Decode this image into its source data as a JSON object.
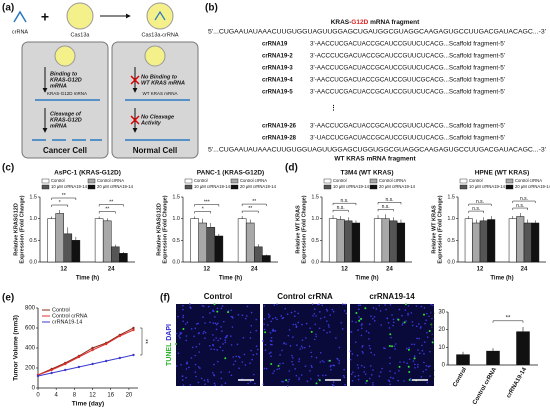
{
  "panel_labels": [
    "(a)",
    "(b)",
    "(c)",
    "(d)",
    "(e)",
    "(f)"
  ],
  "diagram_a": {
    "crrna": "crRNA",
    "cas13a": "Cas13a",
    "complex": "Cas13a-crRNA",
    "cancer": {
      "step1": [
        "Binding to",
        "KRAS-G12D",
        "mRNA"
      ],
      "target": "KRAS-G12D mRNA",
      "step2": [
        "Cleavage of",
        "KRAS-G12D",
        "mRNA"
      ],
      "label": "Cancer Cell"
    },
    "normal": {
      "step1": [
        "No Binding to",
        "WT KRAS mRNA"
      ],
      "target": "WT KRAS mRNA",
      "step2": [
        "No Cleavage",
        "Activity"
      ],
      "label": "Normal Cell"
    }
  },
  "sequences_b": {
    "title": [
      "KRAS-",
      "G12D",
      " mRNA fragment"
    ],
    "top": "5'...CUGAAUAUAAACUUGUGGUAGUUGGAGCUGAUGGCGUAGGCAAGAGUGCCUUGACGAUACAGC...-3'",
    "rows": [
      [
        "crRNA19",
        "3'-AACCUCGACUACCGCAUCCGUUCUCACG...Scaffold fragment-5'"
      ],
      [
        "crRNA19-2",
        "3'-ACCCUCGACUACCGCAUCCGUUCUCACG...Scaffold fragment-5'"
      ],
      [
        "crRNA19-3",
        "3'-AACCUCGACUACCGCAUCCGUUCUCACG...Scaffold fragment-5'"
      ],
      [
        "crRNA19-4",
        "3'-AACCUCGACUACCGCAUCCGUUCGCACG...Scaffold fragment-5'"
      ],
      [
        "crRNA19-5",
        "3'-AACCUCGACUACCGCAUCCGUUCUCACG...Scaffold fragment-5'"
      ],
      [
        "crRNA19-26",
        "3'-AACCUCGACUACCGCAUCCGUUCUCACG...Scaffold fragment-5'"
      ],
      [
        "crRNA19-28",
        "3'-UACCUCGACUACCGCAUCCGUUCUCACG...Scaffold fragment-5'"
      ]
    ],
    "bottom": "5'...CUGAAUAUAAACUUGUGGUAGUUGGAGCUGGUGGCGUAGGCAAGAGUGCCUUGACGAUACAGC...-3'",
    "bottom_label": "WT KRAS mRNA fragment"
  },
  "images_f": {
    "labels": [
      "Control",
      "Control crRNA",
      "crRNA19-14"
    ],
    "stain": [
      "TUNEL",
      "DAPI"
    ]
  },
  "chart_data": [
    {
      "type": "bar",
      "title": "AsPC-1 (KRAS-G12D)",
      "y_label": [
        "Relative KRASG12D",
        "Expression (Fold Change)"
      ],
      "x_label": "Time (h)",
      "categories": [
        "12",
        "24"
      ],
      "ylim": [
        0,
        1.5
      ],
      "yticks": [
        {
          "value": 0,
          "label": "0.0"
        },
        {
          "value": 0.5,
          "label": "0.5"
        },
        {
          "value": 1,
          "label": "1.0"
        },
        {
          "value": 1.5,
          "label": "1.5"
        }
      ],
      "series": [
        {
          "name": "Control",
          "color": "#ffffff",
          "values": [
            1.0,
            1.0
          ],
          "errors": [
            0.05,
            0.05
          ]
        },
        {
          "name": "Control crRNA",
          "color": "#a8a8a8",
          "values": [
            1.12,
            0.95
          ],
          "errors": [
            0.08,
            0.06
          ]
        },
        {
          "name": "10 μM crRNA19-14",
          "color": "#555555",
          "values": [
            0.65,
            0.35
          ],
          "errors": [
            0.15,
            0.05
          ]
        },
        {
          "name": "20 μM crRNA19-14",
          "color": "#111111",
          "values": [
            0.5,
            0.2
          ],
          "errors": [
            0.08,
            0.03
          ]
        }
      ],
      "significance": [
        "*",
        "**",
        "**",
        "**"
      ]
    },
    {
      "type": "bar",
      "title": "PANC-1 (KRAS-G12D)",
      "y_label": [
        "Relative KRASG12D",
        "Expression (Fold Change)"
      ],
      "x_label": "Time (h)",
      "categories": [
        "12",
        "24"
      ],
      "ylim": [
        0,
        1.5
      ],
      "yticks": [
        {
          "value": 0,
          "label": "0.0"
        },
        {
          "value": 0.5,
          "label": "0.5"
        },
        {
          "value": 1,
          "label": "1.0"
        },
        {
          "value": 1.5,
          "label": "1.5"
        }
      ],
      "series": [
        {
          "name": "Control",
          "color": "#ffffff",
          "values": [
            1.0,
            1.0
          ],
          "errors": [
            0.05,
            0.06
          ]
        },
        {
          "name": "Control crRNA",
          "color": "#a8a8a8",
          "values": [
            0.9,
            0.9
          ],
          "errors": [
            0.1,
            0.08
          ]
        },
        {
          "name": "10 μM crRNA19-14",
          "color": "#555555",
          "values": [
            0.8,
            0.35
          ],
          "errors": [
            0.1,
            0.06
          ]
        },
        {
          "name": "20 μM crRNA19-14",
          "color": "#111111",
          "values": [
            0.6,
            0.15
          ],
          "errors": [
            0.05,
            0.02
          ]
        }
      ],
      "significance": [
        "*",
        "***",
        "**",
        "**"
      ]
    },
    {
      "type": "bar",
      "title": "T3M4 (WT KRAS)",
      "y_label": [
        "Relative WT KRAS",
        "Expression (Fold Change)"
      ],
      "x_label": "Time (h)",
      "categories": [
        "12",
        "24"
      ],
      "ylim": [
        0,
        1.5
      ],
      "yticks": [
        {
          "value": 0,
          "label": "0.0"
        },
        {
          "value": 0.5,
          "label": "0.5"
        },
        {
          "value": 1,
          "label": "1.0"
        },
        {
          "value": 1.5,
          "label": "1.5"
        }
      ],
      "series": [
        {
          "name": "Control",
          "color": "#ffffff",
          "values": [
            1.0,
            1.0
          ],
          "errors": [
            0.08,
            0.08
          ]
        },
        {
          "name": "Control crRNA",
          "color": "#a8a8a8",
          "values": [
            0.98,
            1.0
          ],
          "errors": [
            0.08,
            0.1
          ]
        },
        {
          "name": "10 μM crRNA19-14",
          "color": "#555555",
          "values": [
            0.95,
            0.95
          ],
          "errors": [
            0.08,
            0.08
          ]
        },
        {
          "name": "20 μM crRNA19-14",
          "color": "#111111",
          "values": [
            0.9,
            0.9
          ],
          "errors": [
            0.06,
            0.08
          ]
        }
      ],
      "significance": [
        "n.s.",
        "n.s.",
        "n.s.",
        "n.s."
      ]
    },
    {
      "type": "bar",
      "title": "HPNE (WT KRAS)",
      "y_label": [
        "Relative WT KRAS",
        "Expression (Fold Change)"
      ],
      "x_label": "Time (h)",
      "categories": [
        "12",
        "24"
      ],
      "ylim": [
        0,
        1.5
      ],
      "yticks": [
        {
          "value": 0,
          "label": "0.0"
        },
        {
          "value": 0.5,
          "label": "0.5"
        },
        {
          "value": 1,
          "label": "1.0"
        },
        {
          "value": 1.5,
          "label": "1.5"
        }
      ],
      "series": [
        {
          "name": "Control",
          "color": "#ffffff",
          "values": [
            1.0,
            1.0
          ],
          "errors": [
            0.06,
            0.06
          ]
        },
        {
          "name": "Control crRNA",
          "color": "#a8a8a8",
          "values": [
            0.9,
            1.05
          ],
          "errors": [
            0.08,
            0.08
          ]
        },
        {
          "name": "10 μM crRNA19-14",
          "color": "#555555",
          "values": [
            0.95,
            0.9
          ],
          "errors": [
            0.08,
            0.08
          ]
        },
        {
          "name": "20 μM crRNA19-14",
          "color": "#111111",
          "values": [
            0.98,
            0.9
          ],
          "errors": [
            0.08,
            0.06
          ]
        }
      ],
      "significance": [
        "n.s.",
        "n.s.",
        "n.s.",
        "n.s."
      ]
    },
    {
      "type": "line",
      "y_label": "Tumor Volume (mm3)",
      "x_label": "Time (day)",
      "x": [
        0,
        3,
        6,
        9,
        12,
        15,
        18,
        21
      ],
      "xlim": [
        0,
        22
      ],
      "xticks": [
        0,
        4,
        8,
        12,
        16,
        20
      ],
      "ylim": [
        0,
        800
      ],
      "yticks": [
        0,
        200,
        400,
        600,
        800
      ],
      "series": [
        {
          "name": "Control",
          "color": "#8b2a1a",
          "values": [
            130,
            190,
            250,
            320,
            400,
            450,
            530,
            600
          ]
        },
        {
          "name": "Control crRNA",
          "color": "#e03030",
          "values": [
            130,
            180,
            240,
            310,
            380,
            440,
            520,
            580
          ]
        },
        {
          "name": "crRNA19-14",
          "color": "#3a3ad0",
          "values": [
            120,
            150,
            180,
            210,
            240,
            270,
            300,
            330
          ]
        }
      ],
      "significance": "**"
    },
    {
      "type": "bar",
      "y_label": "Apoptotic tumor cell rate (%)",
      "categories": [
        "Control",
        "Control crRNA",
        "crRNA19-14"
      ],
      "ylim": [
        0,
        30
      ],
      "yticks": [
        0,
        10,
        20,
        30
      ],
      "color": "#111111",
      "values": [
        6,
        8,
        19
      ],
      "errors": [
        1.5,
        1.5,
        2.5
      ],
      "significance": "**"
    }
  ]
}
